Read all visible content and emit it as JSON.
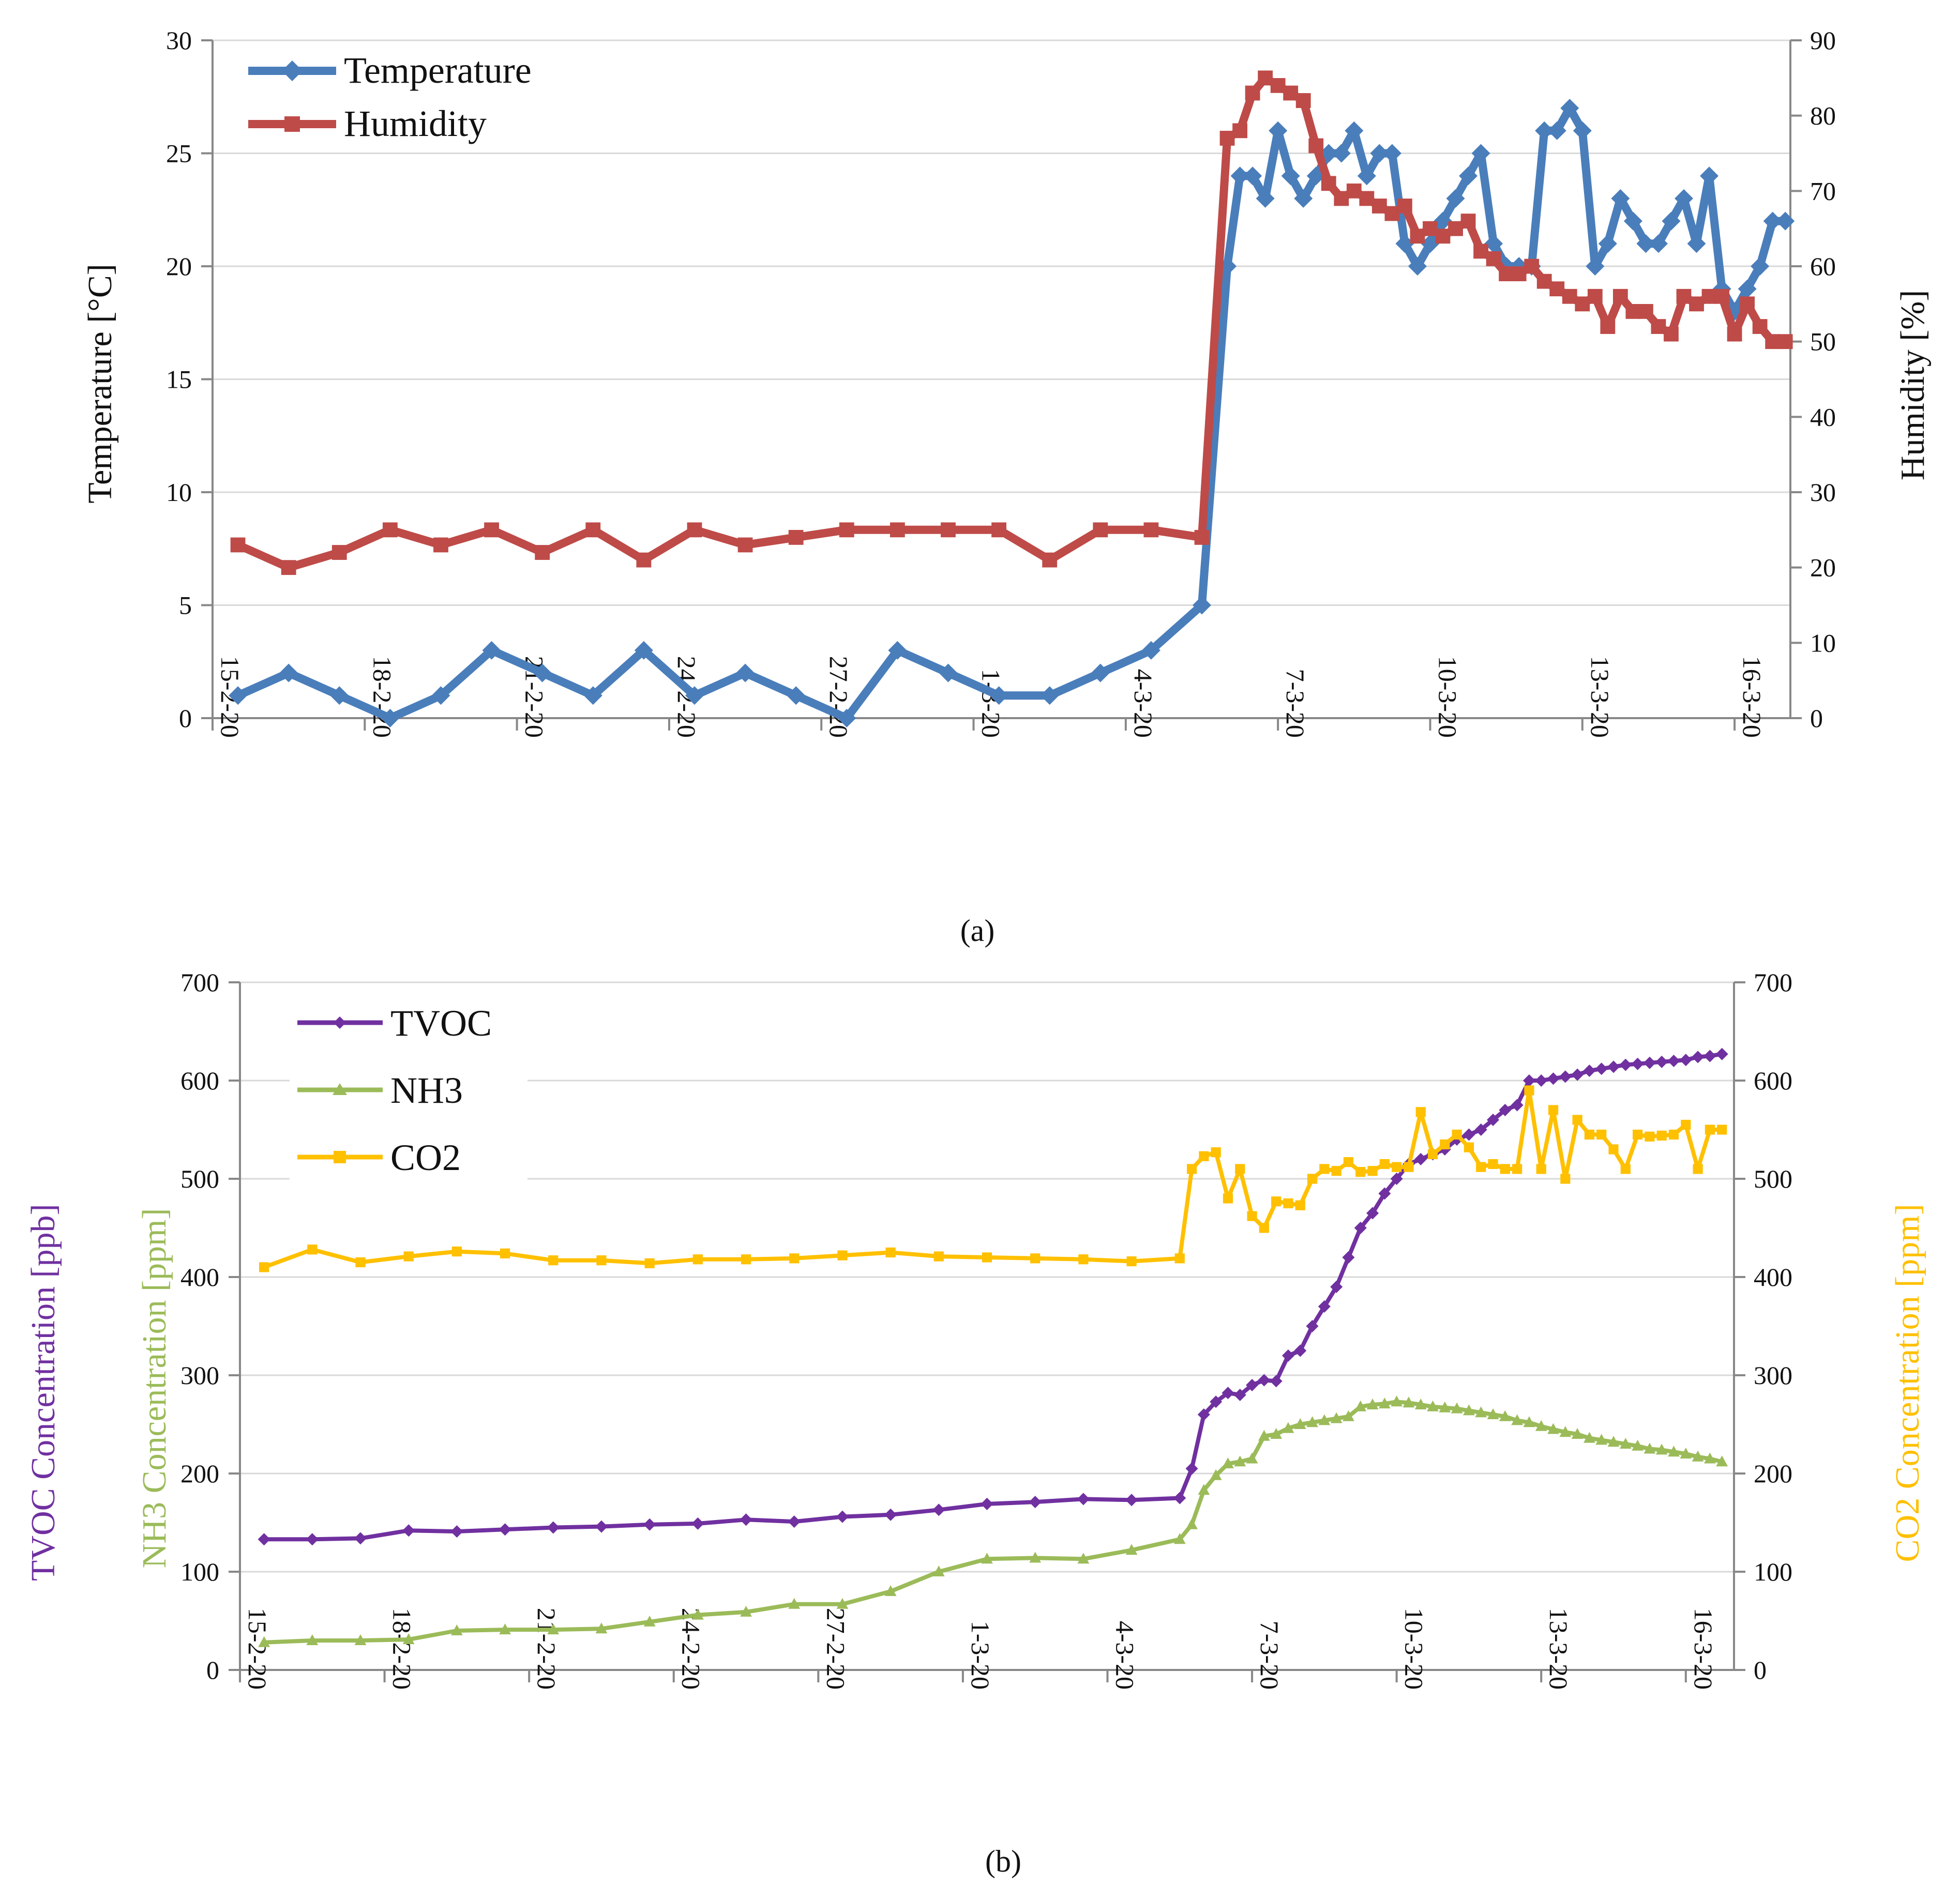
{
  "chart_data": [
    {
      "type": "line",
      "panel_label": "(a)",
      "title": "",
      "x_tick_labels": [
        "15-2-20",
        "18-2-20",
        "21-2-20",
        "24-2-20",
        "27-2-20",
        "1-3-20",
        "4-3-20",
        "7-3-20",
        "10-3-20",
        "13-3-20",
        "16-3-20"
      ],
      "x_tick_days": [
        0,
        3,
        6,
        9,
        12,
        15,
        18,
        21,
        24,
        27,
        30
      ],
      "xlim_days": [
        0,
        31.1
      ],
      "ylabel": "Temperature [°C]",
      "ylim": [
        0,
        30
      ],
      "yticks": [
        0,
        5,
        10,
        15,
        20,
        25,
        30
      ],
      "y2label": "Humidity [%]",
      "y2lim": [
        0,
        90
      ],
      "y2ticks": [
        0,
        10,
        20,
        30,
        40,
        50,
        60,
        70,
        80,
        90
      ],
      "legend_position": "top-left",
      "series": [
        {
          "name": "Temperature",
          "axis": "left",
          "color": "#4a7ebb",
          "marker": "diamond",
          "x": [
            0.5,
            1.5,
            2.5,
            3.5,
            4.5,
            5.5,
            6.5,
            7.5,
            8.5,
            9.5,
            10.5,
            11.5,
            12.5,
            13.5,
            14.5,
            15.5,
            16.5,
            17.5,
            18.5,
            19.5,
            20.0,
            20.25,
            20.5,
            20.75,
            21.0,
            21.25,
            21.5,
            21.75,
            22.0,
            22.25,
            22.5,
            22.75,
            23.0,
            23.25,
            23.5,
            23.75,
            24.0,
            24.25,
            24.5,
            24.75,
            25.0,
            25.25,
            25.5,
            25.75,
            26.0,
            26.25,
            26.5,
            26.75,
            27.0,
            27.25,
            27.5,
            27.75,
            28.0,
            28.25,
            28.5,
            28.75,
            29.0,
            29.25,
            29.5,
            29.75,
            30.0,
            30.25,
            30.5,
            30.75,
            31.0
          ],
          "values": [
            1,
            2,
            1,
            0,
            1,
            3,
            2,
            1,
            3,
            1,
            2,
            1,
            0,
            3,
            2,
            1,
            1,
            2,
            3,
            5,
            20,
            24,
            24,
            23,
            26,
            24,
            23,
            24,
            25,
            25,
            26,
            24,
            25,
            25,
            21,
            20,
            21,
            22,
            23,
            24,
            25,
            21,
            20,
            20,
            20,
            26,
            26,
            27,
            26,
            20,
            21,
            23,
            22,
            21,
            21,
            22,
            23,
            21,
            24,
            19,
            18,
            19,
            20,
            22,
            22
          ]
        },
        {
          "name": "Humidity",
          "axis": "right",
          "color": "#be4b48",
          "marker": "square",
          "x": [
            0.5,
            1.5,
            2.5,
            3.5,
            4.5,
            5.5,
            6.5,
            7.5,
            8.5,
            9.5,
            10.5,
            11.5,
            12.5,
            13.5,
            14.5,
            15.5,
            16.5,
            17.5,
            18.5,
            19.5,
            20.0,
            20.25,
            20.5,
            20.75,
            21.0,
            21.25,
            21.5,
            21.75,
            22.0,
            22.25,
            22.5,
            22.75,
            23.0,
            23.25,
            23.5,
            23.75,
            24.0,
            24.25,
            24.5,
            24.75,
            25.0,
            25.25,
            25.5,
            25.75,
            26.0,
            26.25,
            26.5,
            26.75,
            27.0,
            27.25,
            27.5,
            27.75,
            28.0,
            28.25,
            28.5,
            28.75,
            29.0,
            29.25,
            29.5,
            29.75,
            30.0,
            30.25,
            30.5,
            30.75,
            31.0
          ],
          "values": [
            23,
            20,
            22,
            25,
            23,
            25,
            22,
            25,
            21,
            25,
            23,
            24,
            25,
            25,
            25,
            25,
            21,
            25,
            25,
            24,
            77,
            78,
            83,
            85,
            84,
            83,
            82,
            76,
            71,
            69,
            70,
            69,
            68,
            67,
            68,
            64,
            65,
            64,
            65,
            66,
            62,
            61,
            59,
            59,
            60,
            58,
            57,
            56,
            55,
            56,
            52,
            56,
            54,
            54,
            52,
            51,
            56,
            55,
            56,
            56,
            51,
            55,
            52,
            50,
            50
          ]
        }
      ]
    },
    {
      "type": "line",
      "panel_label": "(b)",
      "title": "",
      "x_tick_labels": [
        "15-2-20",
        "18-2-20",
        "21-2-20",
        "24-2-20",
        "27-2-20",
        "1-3-20",
        "4-3-20",
        "7-3-20",
        "10-3-20",
        "13-3-20",
        "16-3-20"
      ],
      "x_tick_days": [
        0,
        3,
        6,
        9,
        12,
        15,
        18,
        21,
        24,
        27,
        30
      ],
      "xlim_days": [
        0,
        31.0
      ],
      "ylabel_parts": [
        "TVOC Concentration [ppb]",
        "NH3 Concentration [ppm]"
      ],
      "ylim": [
        0,
        700
      ],
      "yticks": [
        0,
        100,
        200,
        300,
        400,
        500,
        600,
        700
      ],
      "y2label": "CO2 Concentration [ppm]",
      "y2lim": [
        0,
        700
      ],
      "y2ticks": [
        0,
        100,
        200,
        300,
        400,
        500,
        600,
        700
      ],
      "legend_position": "top-left",
      "series": [
        {
          "name": "TVOC",
          "axis": "left",
          "color": "#7030a0",
          "marker": "diamond",
          "x": [
            0.5,
            1.5,
            2.5,
            3.5,
            4.5,
            5.5,
            6.5,
            7.5,
            8.5,
            9.5,
            10.5,
            11.5,
            12.5,
            13.5,
            14.5,
            15.5,
            16.5,
            17.5,
            18.5,
            19.5,
            19.75,
            20.0,
            20.25,
            20.5,
            20.75,
            21.0,
            21.25,
            21.5,
            21.75,
            22.0,
            22.25,
            22.5,
            22.75,
            23.0,
            23.25,
            23.5,
            23.75,
            24.0,
            24.25,
            24.5,
            24.75,
            25.0,
            25.25,
            25.5,
            25.75,
            26.0,
            26.25,
            26.5,
            26.75,
            27.0,
            27.25,
            27.5,
            27.75,
            28.0,
            28.25,
            28.5,
            28.75,
            29.0,
            29.25,
            29.5,
            29.75,
            30.0,
            30.25,
            30.5,
            30.75
          ],
          "values": [
            133,
            133,
            134,
            142,
            141,
            143,
            145,
            146,
            148,
            149,
            153,
            151,
            156,
            158,
            163,
            169,
            171,
            174,
            173,
            175,
            205,
            260,
            273,
            282,
            280,
            290,
            295,
            294,
            320,
            325,
            350,
            370,
            390,
            420,
            450,
            465,
            485,
            500,
            515,
            520,
            525,
            530,
            540,
            545,
            550,
            560,
            570,
            575,
            600,
            600,
            602,
            604,
            606,
            610,
            612,
            614,
            616,
            617,
            618,
            619,
            620,
            621,
            624,
            625,
            627
          ]
        },
        {
          "name": "NH3",
          "axis": "left",
          "color": "#9bbb59",
          "marker": "triangle",
          "x": [
            0.5,
            1.5,
            2.5,
            3.5,
            4.5,
            5.5,
            6.5,
            7.5,
            8.5,
            9.5,
            10.5,
            11.5,
            12.5,
            13.5,
            14.5,
            15.5,
            16.5,
            17.5,
            18.5,
            19.5,
            19.75,
            20.0,
            20.25,
            20.5,
            20.75,
            21.0,
            21.25,
            21.5,
            21.75,
            22.0,
            22.25,
            22.5,
            22.75,
            23.0,
            23.25,
            23.5,
            23.75,
            24.0,
            24.25,
            24.5,
            24.75,
            25.0,
            25.25,
            25.5,
            25.75,
            26.0,
            26.25,
            26.5,
            26.75,
            27.0,
            27.25,
            27.5,
            27.75,
            28.0,
            28.25,
            28.5,
            28.75,
            29.0,
            29.25,
            29.5,
            29.75,
            30.0,
            30.25,
            30.5,
            30.75
          ],
          "values": [
            28,
            30,
            30,
            31,
            40,
            41,
            41,
            42,
            49,
            56,
            59,
            67,
            67,
            80,
            100,
            113,
            114,
            113,
            122,
            133,
            148,
            183,
            198,
            210,
            212,
            215,
            238,
            240,
            246,
            250,
            252,
            254,
            256,
            258,
            268,
            270,
            271,
            273,
            272,
            270,
            268,
            267,
            266,
            264,
            262,
            260,
            258,
            254,
            252,
            248,
            245,
            242,
            240,
            236,
            234,
            232,
            230,
            228,
            225,
            224,
            222,
            220,
            217,
            215,
            212
          ]
        },
        {
          "name": "CO2",
          "axis": "right",
          "color": "#ffc000",
          "marker": "square",
          "x": [
            0.5,
            1.5,
            2.5,
            3.5,
            4.5,
            5.5,
            6.5,
            7.5,
            8.5,
            9.5,
            10.5,
            11.5,
            12.5,
            13.5,
            14.5,
            15.5,
            16.5,
            17.5,
            18.5,
            19.5,
            19.75,
            20.0,
            20.25,
            20.5,
            20.75,
            21.0,
            21.25,
            21.5,
            21.75,
            22.0,
            22.25,
            22.5,
            22.75,
            23.0,
            23.25,
            23.5,
            23.75,
            24.0,
            24.25,
            24.5,
            24.75,
            25.0,
            25.25,
            25.5,
            25.75,
            26.0,
            26.25,
            26.5,
            26.75,
            27.0,
            27.25,
            27.5,
            27.75,
            28.0,
            28.25,
            28.5,
            28.75,
            29.0,
            29.25,
            29.5,
            29.75,
            30.0,
            30.25,
            30.5,
            30.75
          ],
          "values": [
            410,
            428,
            415,
            421,
            426,
            424,
            417,
            417,
            414,
            418,
            418,
            419,
            422,
            425,
            421,
            420,
            419,
            418,
            416,
            419,
            510,
            523,
            527,
            480,
            510,
            462,
            450,
            477,
            475,
            473,
            500,
            510,
            508,
            517,
            507,
            508,
            515,
            512,
            512,
            568,
            525,
            535,
            545,
            532,
            512,
            515,
            510,
            510,
            590,
            510,
            570,
            500,
            560,
            545,
            545,
            530,
            510,
            545,
            543,
            544,
            545,
            555,
            510,
            550,
            550
          ]
        }
      ]
    }
  ]
}
